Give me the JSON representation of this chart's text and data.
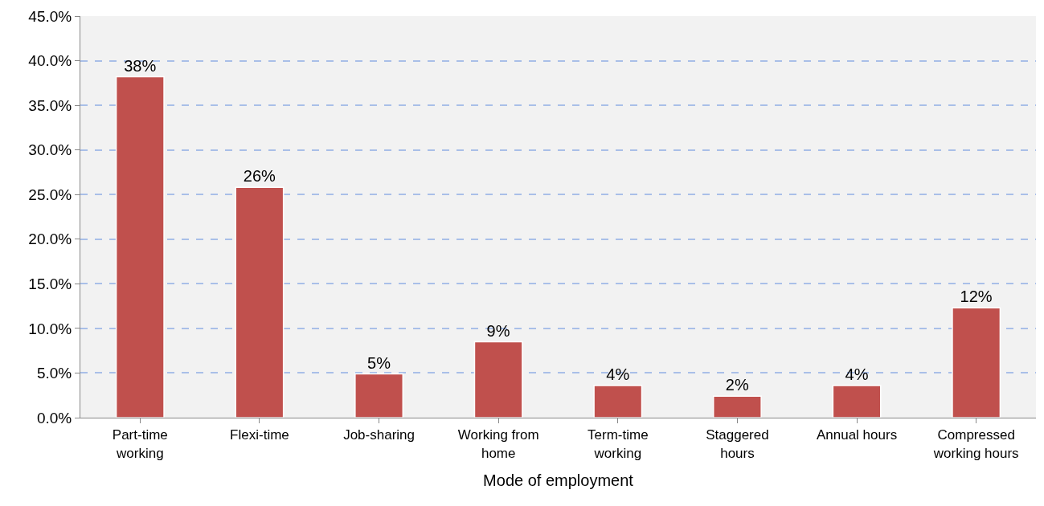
{
  "chart_data": {
    "type": "bar",
    "xlabel": "Mode of employment",
    "categories": [
      "Part-time\nworking",
      "Flexi-time",
      "Job-sharing",
      "Working from\nhome",
      "Term-time\nworking",
      "Staggered\nhours",
      "Annual hours",
      "Compressed\nworking hours"
    ],
    "values": [
      38.2,
      25.8,
      4.9,
      8.5,
      3.6,
      2.4,
      3.6,
      12.3
    ],
    "value_labels": [
      "38%",
      "26%",
      "5%",
      "9%",
      "4%",
      "2%",
      "4%",
      "12%"
    ],
    "color": "#c0504d",
    "ylim": [
      0,
      45
    ],
    "yticks": [
      {
        "value": 0,
        "label": "0.0%"
      },
      {
        "value": 5,
        "label": "5.0%"
      },
      {
        "value": 10,
        "label": "10.0%"
      },
      {
        "value": 15,
        "label": "15.0%"
      },
      {
        "value": 20,
        "label": "20.0%"
      },
      {
        "value": 25,
        "label": "25.0%"
      },
      {
        "value": 30,
        "label": "30.0%"
      },
      {
        "value": 35,
        "label": "35.0%"
      },
      {
        "value": 40,
        "label": "40.0%"
      },
      {
        "value": 45,
        "label": "45.0%"
      }
    ],
    "grid": "y",
    "legend": false
  }
}
